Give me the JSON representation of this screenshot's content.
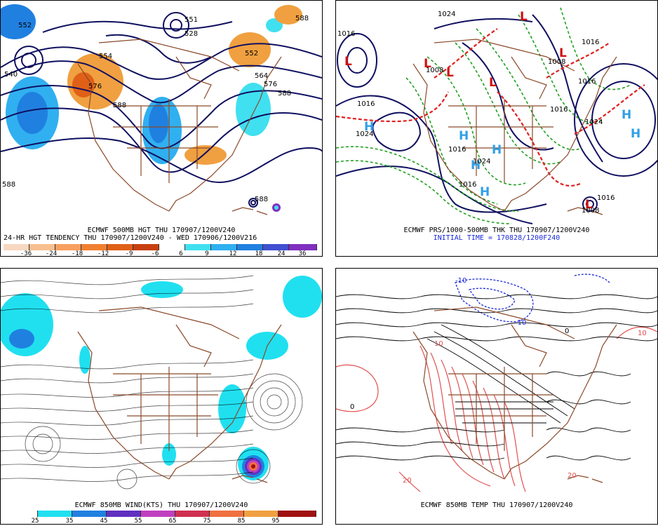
{
  "panels": {
    "p1": {
      "caption_line1": "ECMWF 500MB HGT THU 170907/1200V240",
      "caption_line2": "24-HR HGT TENDENCY THU 170907/1200V240 - WED 170906/1200V216",
      "legend": {
        "labels": [
          "-36",
          "-24",
          "-18",
          "-12",
          "-9",
          "-6",
          "6",
          "9",
          "12",
          "18",
          "24",
          "36"
        ],
        "colors": [
          "#f8d8c0",
          "#f8c090",
          "#f8a060",
          "#f08030",
          "#e06018",
          "#c84010",
          "#ffffff",
          "#40e0f0",
          "#30b0f0",
          "#2080e0",
          "#4050d0",
          "#8030c0"
        ]
      },
      "contour_labels": [
        "552",
        "540",
        "554",
        "576",
        "588",
        "528",
        "551",
        "552",
        "564",
        "576",
        "588",
        "588",
        "588",
        "588"
      ]
    },
    "p2": {
      "caption_line1": "ECMWF PRS/1000-500MB THK THU 170907/1200V240",
      "caption_line2": "INITIAL TIME = 170828/1200F240",
      "isobar_labels": [
        "1016",
        "1024",
        "1016",
        "1024",
        "1008",
        "1016",
        "1024",
        "1008",
        "1016",
        "1016",
        "1016",
        "1016",
        "1024",
        "1016",
        "1008"
      ],
      "highs": [
        "H",
        "H",
        "H",
        "H",
        "H",
        "H",
        "H"
      ],
      "lows": [
        "L",
        "L",
        "L",
        "L",
        "L",
        "L",
        "L"
      ]
    },
    "p3": {
      "caption": "ECMWF 850MB WIND(KTS) THU 170907/1200V240",
      "legend": {
        "labels": [
          "25",
          "35",
          "45",
          "55",
          "65",
          "75",
          "85",
          "95"
        ],
        "colors": [
          "#ffffff",
          "#20e0f0",
          "#2080e0",
          "#6030c0",
          "#c040c0",
          "#d03050",
          "#f07040",
          "#f0a040",
          "#a01010"
        ]
      }
    },
    "p4": {
      "caption": "ECMWF 850MB TEMP THU 170907/1200V240",
      "temp_labels": [
        "0",
        "-10",
        "-10",
        "10",
        "20",
        "20",
        "0",
        "10"
      ]
    }
  },
  "colors": {
    "coast": "#8b4a2b",
    "contour": "#101060",
    "cold": "#1a2ad8",
    "warm": "#e05050",
    "thk_warm": "#e02020",
    "thk_cool": "#20a020",
    "high": "#30a0e8",
    "low": "#d01010"
  }
}
